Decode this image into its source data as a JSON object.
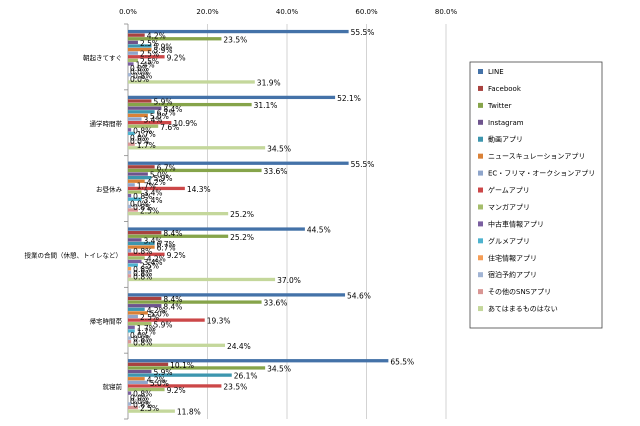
{
  "chart_data": {
    "type": "bar",
    "orientation": "horizontal",
    "xlim": [
      0,
      80
    ],
    "x_ticks": [
      "0.0%",
      "20.0%",
      "40.0%",
      "60.0%",
      "80.0%"
    ],
    "tick_values": [
      0,
      20,
      40,
      60,
      80
    ],
    "grid": true,
    "legend_position": "right",
    "categories": [
      "朝起きてすぐ",
      "通学時間帯",
      "お昼休み",
      "授業の合間（休憩、トイレなど）",
      "帰宅時間帯",
      "就寝前"
    ],
    "series": [
      {
        "name": "LINE",
        "color": "#4472a8",
        "values": [
          55.5,
          52.1,
          55.5,
          44.5,
          54.6,
          65.5
        ]
      },
      {
        "name": "Facebook",
        "color": "#a8423f",
        "values": [
          4.2,
          5.9,
          6.7,
          8.4,
          8.4,
          10.1
        ]
      },
      {
        "name": "Twitter",
        "color": "#86a44a",
        "values": [
          23.5,
          31.1,
          33.6,
          25.2,
          33.6,
          34.5
        ]
      },
      {
        "name": "Instagram",
        "color": "#6e548d",
        "values": [
          2.5,
          8.4,
          5.0,
          3.4,
          8.4,
          5.9
        ]
      },
      {
        "name": "動画アプリ",
        "color": "#3d96ae",
        "values": [
          5.9,
          6.7,
          5.9,
          6.7,
          4.2,
          26.1
        ]
      },
      {
        "name": "ニュースキュレーションアプリ",
        "color": "#da8137",
        "values": [
          5.9,
          5.0,
          4.2,
          6.7,
          5.0,
          4.2
        ]
      },
      {
        "name": "EC・フリマ・オークションアプリ",
        "color": "#8ea5cb",
        "values": [
          2.5,
          3.4,
          1.7,
          0.8,
          2.5,
          5.0
        ]
      },
      {
        "name": "ゲームアプリ",
        "color": "#cc4748",
        "values": [
          9.2,
          10.9,
          14.3,
          9.2,
          19.3,
          23.5
        ]
      },
      {
        "name": "マンガアプリ",
        "color": "#a5bd6b",
        "values": [
          2.5,
          7.6,
          3.4,
          4.2,
          5.9,
          9.2
        ]
      },
      {
        "name": "中古車情報アプリ",
        "color": "#7a5fa0",
        "values": [
          1.4,
          0.8,
          0.8,
          3.4,
          1.7,
          0.8
        ]
      },
      {
        "name": "グルメアプリ",
        "color": "#4eb3cf",
        "values": [
          0.0,
          1.7,
          3.4,
          2.5,
          1.7,
          0.0
        ]
      },
      {
        "name": "住宅情報アプリ",
        "color": "#f59d56",
        "values": [
          0.0,
          0.0,
          0.0,
          0.8,
          0.0,
          0.0
        ]
      },
      {
        "name": "宿泊予約アプリ",
        "color": "#a1b4d4",
        "values": [
          0.8,
          0.0,
          0.8,
          0.8,
          0.8,
          0.8
        ]
      },
      {
        "name": "その他のSNSアプリ",
        "color": "#d99694",
        "values": [
          0.0,
          1.7,
          2.5,
          0.8,
          0.8,
          2.5
        ]
      },
      {
        "name": "あてはまるものはない",
        "color": "#c4d79b",
        "values": [
          31.9,
          34.5,
          25.2,
          37.0,
          24.4,
          11.8
        ]
      }
    ]
  }
}
